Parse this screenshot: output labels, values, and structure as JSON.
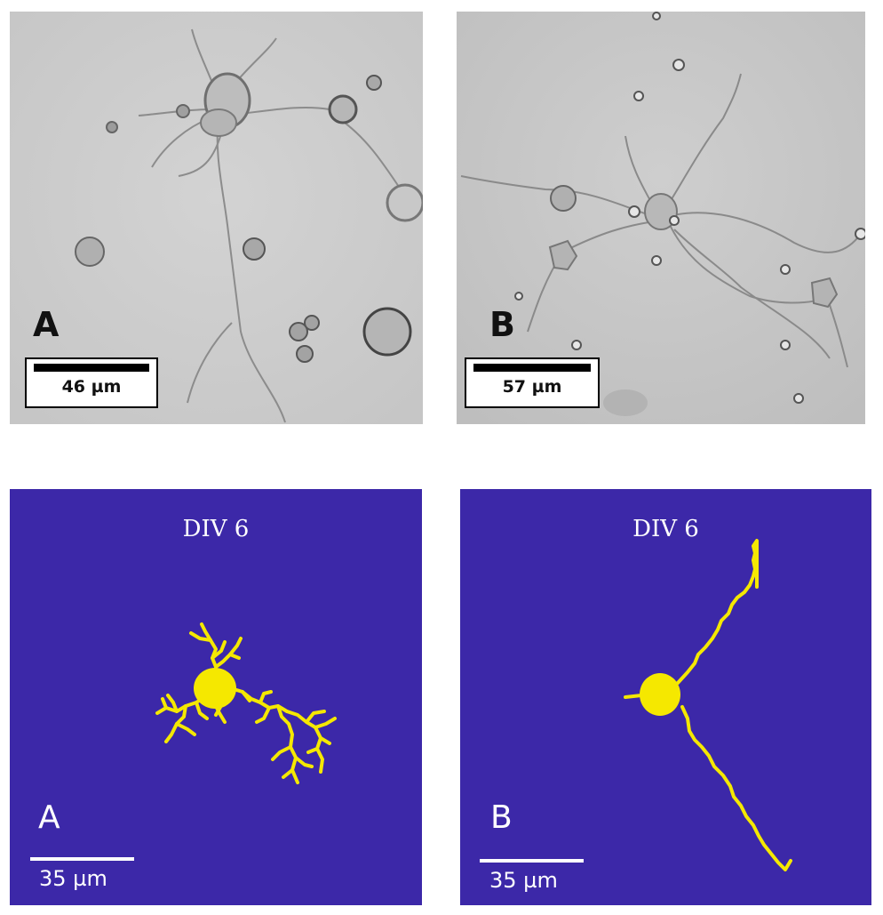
{
  "figure": {
    "photo_a": {
      "label": "A",
      "scale": "46 µm"
    },
    "photo_b": {
      "label": "B",
      "scale": "57 µm"
    },
    "sim_a": {
      "title": "DIV 6",
      "label": "A",
      "scale": "35 µm"
    },
    "sim_b": {
      "title": "DIV 6",
      "label": "B",
      "scale": "35 µm"
    }
  },
  "colors": {
    "sim_background": "#3c28a8",
    "neuron_yellow": "#f5e800",
    "photo_background": "#cfcfcf"
  }
}
